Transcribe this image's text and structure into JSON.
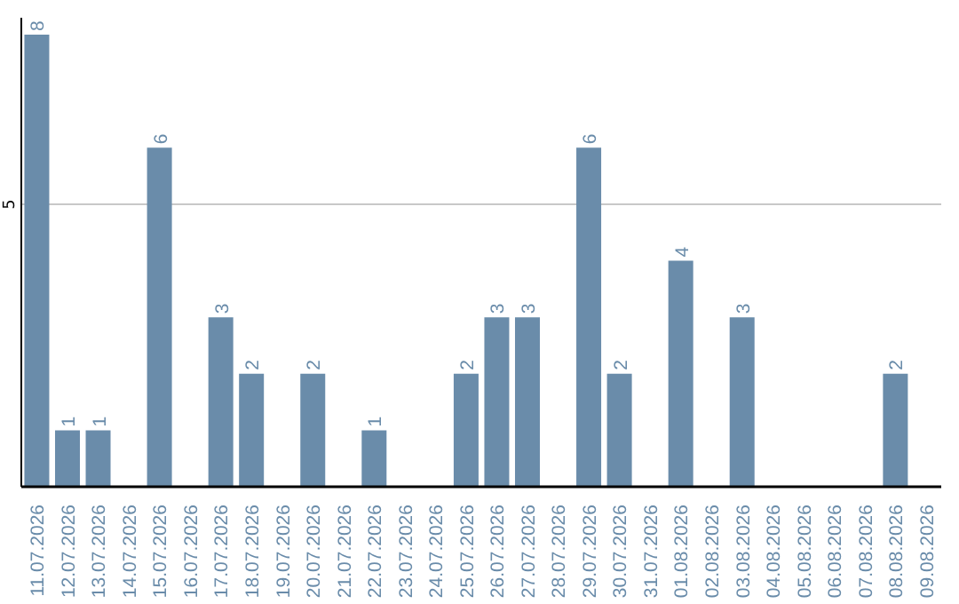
{
  "chart_data": {
    "type": "bar",
    "categories": [
      "11.07.2026",
      "12.07.2026",
      "13.07.2026",
      "14.07.2026",
      "15.07.2026",
      "16.07.2026",
      "17.07.2026",
      "18.07.2026",
      "19.07.2026",
      "20.07.2026",
      "21.07.2026",
      "22.07.2026",
      "23.07.2026",
      "24.07.2026",
      "25.07.2026",
      "26.07.2026",
      "27.07.2026",
      "28.07.2026",
      "29.07.2026",
      "30.07.2026",
      "31.07.2026",
      "01.08.2026",
      "02.08.2026",
      "03.08.2026",
      "04.08.2026",
      "05.08.2026",
      "06.08.2026",
      "07.08.2026",
      "08.08.2026",
      "09.08.2026"
    ],
    "values": [
      8,
      1,
      1,
      0,
      6,
      0,
      3,
      2,
      0,
      2,
      0,
      1,
      0,
      0,
      2,
      3,
      3,
      0,
      6,
      2,
      0,
      4,
      0,
      3,
      0,
      0,
      0,
      0,
      2,
      0
    ],
    "value_labels": [
      "8",
      "1",
      "1",
      null,
      "6",
      null,
      "3",
      "2",
      null,
      "2",
      null,
      "1",
      null,
      null,
      "2",
      "3",
      "3",
      null,
      "6",
      "2",
      null,
      "4",
      null,
      "3",
      null,
      null,
      null,
      null,
      "2",
      null
    ],
    "color": "#6a8caa",
    "ylim": [
      0,
      8.3
    ],
    "yticks": [
      5
    ],
    "grid": "y",
    "legend": false
  }
}
